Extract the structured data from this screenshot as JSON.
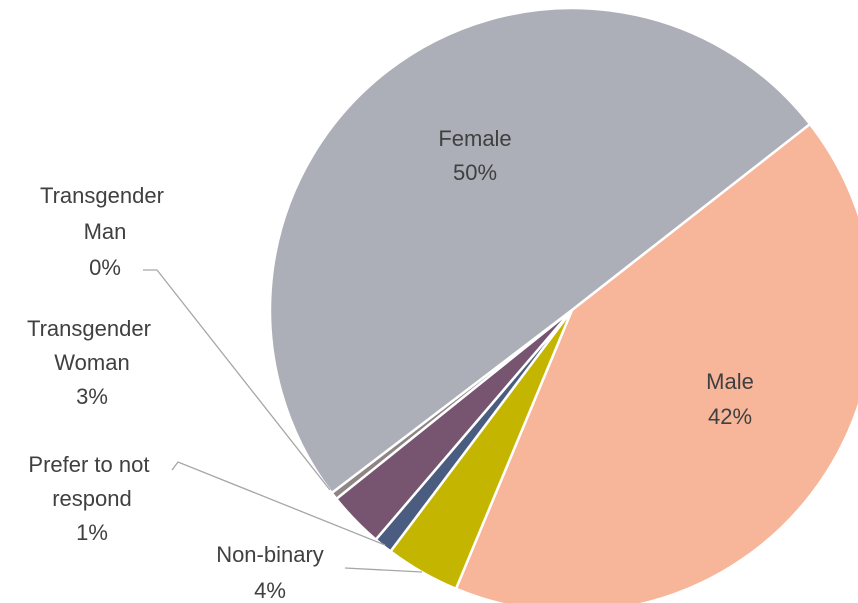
{
  "chart_data": {
    "type": "pie",
    "categories": [
      "Male",
      "Non-binary",
      "Prefer to not respond",
      "Transgender Woman",
      "Transgender Man",
      "Female"
    ],
    "values": [
      42,
      4,
      1,
      3,
      0.4,
      50
    ],
    "value_labels": [
      "42%",
      "4%",
      "1%",
      "3%",
      "0%",
      "50%"
    ],
    "colors": [
      "#f7b59a",
      "#c4b600",
      "#4a5d80",
      "#775570",
      "#8e8584",
      "#adafb8"
    ]
  }
}
